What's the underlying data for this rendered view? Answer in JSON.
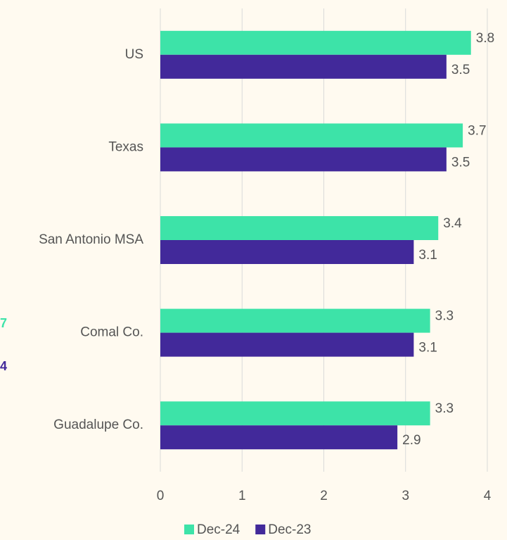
{
  "chart_data": {
    "type": "hbar",
    "categories": [
      "US",
      "Texas",
      "San Antonio MSA",
      "Comal Co.",
      "Guadalupe Co."
    ],
    "series": [
      {
        "name": "Dec-24",
        "color": "#3de3a8",
        "values": [
          3.8,
          3.7,
          3.4,
          3.3,
          3.3
        ]
      },
      {
        "name": "Dec-23",
        "color": "#42299a",
        "values": [
          3.5,
          3.5,
          3.1,
          3.1,
          2.9
        ]
      }
    ],
    "xlim": [
      0,
      4
    ],
    "xticks": [
      0,
      1,
      2,
      3,
      4
    ],
    "grid": true,
    "legend": "bottom"
  },
  "fragments": [
    "7",
    "4"
  ]
}
